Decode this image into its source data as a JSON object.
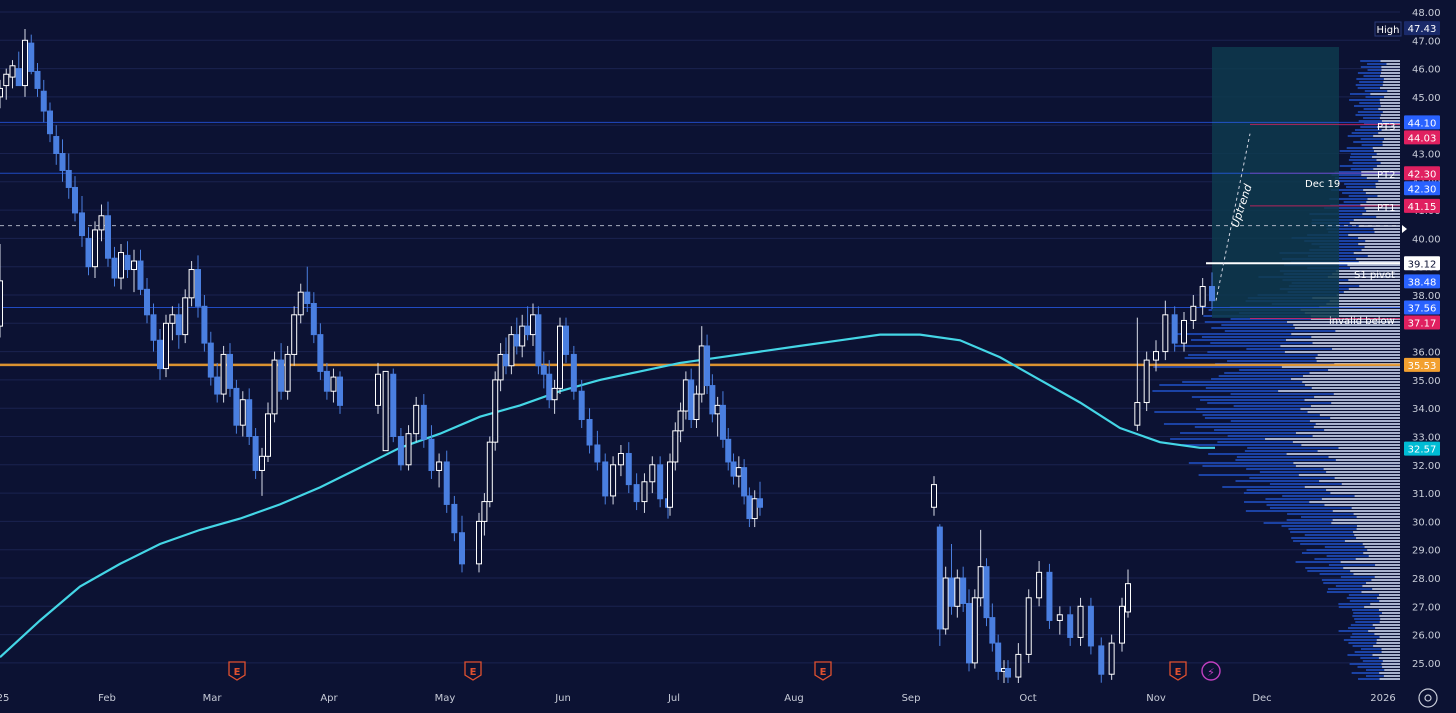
{
  "chart_data": {
    "type": "candlestick",
    "title": "",
    "y_axis": {
      "side": "right",
      "ticks": [
        25,
        26,
        27,
        28,
        29,
        30,
        31,
        32,
        33,
        34,
        35,
        36,
        37,
        38,
        39,
        40,
        41,
        42,
        43,
        44,
        45,
        46,
        47,
        48
      ],
      "tick_labels": [
        "25.00",
        "26.00",
        "27.00",
        "28.00",
        "29.00",
        "30.00",
        "31.00",
        "32.00",
        "33.00",
        "34.00",
        "35.00",
        "36.00",
        "37.00",
        "38.00",
        "39.00",
        "40.00",
        "41.00",
        "42.00",
        "43.00",
        "44.00",
        "45.00",
        "46.00",
        "47.00",
        "48.00"
      ]
    },
    "x_axis": {
      "labels": [
        "25",
        "Feb",
        "Mar",
        "Apr",
        "May",
        "Jun",
        "Jul",
        "Aug",
        "Sep",
        "Oct",
        "Nov",
        "Dec",
        "2026"
      ]
    },
    "candles_ohlc": [
      [
        45.0,
        45.6,
        44.6,
        45.3
      ],
      [
        45.4,
        46.0,
        44.9,
        45.8
      ],
      [
        45.7,
        46.3,
        45.3,
        46.1
      ],
      [
        46.0,
        46.6,
        45.6,
        45.4
      ],
      [
        45.4,
        47.4,
        45.0,
        47.0
      ],
      [
        46.9,
        47.2,
        45.8,
        45.9
      ],
      [
        45.9,
        46.2,
        45.0,
        45.3
      ],
      [
        45.2,
        45.6,
        44.1,
        44.5
      ],
      [
        44.5,
        44.8,
        43.4,
        43.7
      ],
      [
        43.6,
        44.0,
        42.6,
        43.0
      ],
      [
        43.0,
        43.5,
        42.0,
        42.4
      ],
      [
        42.4,
        43.0,
        41.4,
        41.8
      ],
      [
        41.8,
        42.2,
        40.6,
        40.9
      ],
      [
        40.9,
        41.5,
        39.7,
        40.1
      ],
      [
        40.0,
        40.4,
        38.7,
        39.0
      ],
      [
        39.0,
        40.6,
        38.6,
        40.3
      ],
      [
        40.3,
        41.2,
        39.9,
        40.8
      ],
      [
        40.8,
        41.3,
        39.0,
        39.3
      ],
      [
        39.3,
        39.7,
        38.3,
        38.6
      ],
      [
        38.6,
        39.8,
        38.2,
        39.5
      ],
      [
        39.4,
        39.9,
        38.6,
        38.9
      ],
      [
        38.9,
        39.6,
        38.1,
        39.2
      ],
      [
        39.2,
        39.6,
        38.0,
        38.2
      ],
      [
        38.2,
        38.6,
        37.0,
        37.3
      ],
      [
        37.3,
        37.7,
        36.0,
        36.4
      ],
      [
        36.4,
        36.8,
        35.0,
        35.4
      ],
      [
        35.4,
        37.3,
        35.1,
        37.0
      ],
      [
        37.0,
        37.6,
        36.4,
        37.3
      ],
      [
        37.3,
        37.7,
        36.1,
        36.6
      ],
      [
        36.6,
        38.2,
        36.3,
        37.9
      ],
      [
        37.9,
        39.2,
        37.6,
        38.9
      ],
      [
        38.9,
        39.4,
        37.2,
        37.6
      ],
      [
        37.6,
        38.0,
        36.0,
        36.3
      ],
      [
        36.3,
        36.7,
        34.8,
        35.1
      ],
      [
        35.1,
        35.6,
        34.2,
        34.5
      ],
      [
        34.5,
        36.2,
        34.2,
        35.9
      ],
      [
        35.9,
        36.3,
        34.4,
        34.7
      ],
      [
        34.7,
        35.0,
        33.1,
        33.4
      ],
      [
        33.4,
        34.6,
        33.0,
        34.3
      ],
      [
        34.3,
        34.7,
        32.7,
        33.0
      ],
      [
        33.0,
        33.3,
        31.5,
        31.8
      ],
      [
        31.8,
        32.6,
        30.9,
        32.3
      ],
      [
        32.3,
        34.2,
        32.1,
        33.8
      ],
      [
        33.8,
        36.0,
        33.5,
        35.7
      ],
      [
        35.7,
        36.3,
        34.3,
        34.6
      ],
      [
        34.6,
        36.2,
        34.3,
        35.9
      ],
      [
        35.9,
        37.6,
        35.5,
        37.3
      ],
      [
        37.3,
        38.4,
        37.0,
        38.1
      ],
      [
        38.1,
        39.0,
        37.4,
        37.7
      ],
      [
        37.7,
        38.1,
        36.3,
        36.6
      ],
      [
        36.6,
        37.0,
        35.0,
        35.3
      ],
      [
        35.3,
        35.6,
        34.3,
        34.6
      ],
      [
        34.6,
        35.4,
        34.2,
        35.1
      ],
      [
        35.1,
        35.3,
        33.8,
        34.1
      ],
      [
        34.1,
        35.6,
        33.8,
        35.2
      ],
      [
        32.5,
        35.3,
        32.5,
        35.3
      ],
      [
        35.2,
        35.4,
        32.8,
        33.0
      ],
      [
        33.0,
        33.3,
        31.8,
        32.0
      ],
      [
        32.0,
        33.4,
        31.8,
        33.1
      ],
      [
        33.1,
        34.4,
        32.8,
        34.1
      ],
      [
        34.1,
        34.5,
        32.6,
        32.9
      ],
      [
        32.9,
        33.4,
        31.5,
        31.8
      ],
      [
        31.8,
        32.4,
        31.2,
        32.1
      ],
      [
        32.1,
        32.5,
        30.3,
        30.6
      ],
      [
        30.6,
        30.9,
        29.3,
        29.6
      ],
      [
        29.6,
        30.2,
        28.2,
        28.5
      ],
      [
        28.5,
        30.3,
        28.2,
        30.0
      ],
      [
        30.0,
        31.0,
        29.5,
        30.7
      ],
      [
        30.7,
        33.0,
        30.5,
        32.8
      ],
      [
        32.8,
        35.3,
        32.5,
        35.0
      ],
      [
        35.0,
        36.3,
        34.6,
        35.9
      ],
      [
        35.9,
        36.5,
        35.2,
        35.5
      ],
      [
        35.5,
        36.9,
        35.2,
        36.6
      ],
      [
        36.6,
        37.2,
        35.9,
        36.2
      ],
      [
        36.2,
        37.3,
        35.8,
        36.9
      ],
      [
        36.9,
        37.6,
        36.4,
        36.6
      ],
      [
        36.6,
        37.7,
        36.2,
        37.3
      ],
      [
        37.3,
        37.6,
        35.2,
        35.5
      ],
      [
        35.5,
        36.0,
        34.7,
        35.2
      ],
      [
        35.2,
        35.7,
        34.0,
        34.3
      ],
      [
        34.3,
        35.0,
        33.8,
        34.7
      ],
      [
        34.7,
        37.2,
        34.5,
        36.9
      ],
      [
        36.9,
        37.2,
        35.6,
        35.9
      ],
      [
        35.9,
        36.2,
        34.3,
        34.6
      ],
      [
        34.6,
        35.0,
        33.3,
        33.6
      ],
      [
        33.6,
        34.0,
        32.4,
        32.7
      ],
      [
        32.7,
        33.2,
        31.8,
        32.1
      ],
      [
        32.1,
        32.4,
        30.6,
        30.9
      ],
      [
        30.9,
        32.3,
        30.6,
        32.0
      ],
      [
        32.0,
        32.7,
        31.6,
        32.4
      ],
      [
        32.4,
        32.8,
        31.0,
        31.3
      ],
      [
        31.3,
        31.7,
        30.4,
        30.7
      ],
      [
        30.7,
        31.7,
        30.3,
        31.4
      ],
      [
        31.4,
        32.3,
        31.0,
        32.0
      ],
      [
        32.0,
        32.3,
        30.5,
        30.8
      ],
      [
        30.8,
        31.2,
        30.1,
        30.5
      ],
      [
        30.5,
        32.4,
        30.2,
        32.1
      ],
      [
        32.1,
        33.5,
        31.8,
        33.2
      ],
      [
        33.2,
        34.2,
        32.8,
        33.9
      ],
      [
        33.9,
        35.3,
        33.6,
        35.0
      ],
      [
        35.0,
        35.4,
        33.3,
        33.6
      ],
      [
        33.6,
        34.8,
        33.3,
        34.5
      ],
      [
        34.5,
        36.9,
        34.2,
        36.2
      ],
      [
        36.2,
        36.6,
        34.5,
        34.8
      ],
      [
        34.8,
        35.2,
        33.5,
        33.8
      ],
      [
        33.8,
        34.4,
        33.0,
        34.1
      ],
      [
        34.1,
        34.6,
        32.6,
        32.9
      ],
      [
        32.9,
        33.3,
        31.8,
        32.1
      ],
      [
        32.1,
        32.4,
        31.3,
        31.6
      ],
      [
        31.6,
        32.3,
        31.2,
        31.9
      ],
      [
        31.9,
        32.2,
        30.6,
        30.9
      ],
      [
        30.9,
        31.2,
        29.8,
        30.1
      ],
      [
        30.1,
        31.1,
        29.8,
        30.8
      ],
      [
        30.8,
        31.4,
        30.2,
        30.5
      ],
      [
        30.5,
        31.6,
        30.2,
        31.3
      ],
      [
        29.8,
        29.9,
        25.6,
        26.2
      ],
      [
        26.2,
        28.4,
        26.0,
        28.0
      ],
      [
        28.0,
        29.2,
        26.7,
        27.0
      ],
      [
        27.0,
        28.3,
        26.6,
        28.0
      ],
      [
        28.0,
        28.4,
        26.8,
        27.1
      ],
      [
        27.1,
        27.6,
        24.7,
        25.0
      ],
      [
        25.0,
        27.6,
        24.8,
        27.3
      ],
      [
        27.3,
        29.7,
        27.0,
        28.4
      ],
      [
        28.4,
        28.7,
        26.3,
        26.6
      ],
      [
        26.6,
        27.1,
        25.4,
        25.7
      ],
      [
        25.7,
        26.0,
        24.4,
        24.7
      ],
      [
        24.7,
        25.1,
        24.2,
        24.8
      ],
      [
        24.8,
        25.1,
        24.2,
        24.5
      ],
      [
        24.5,
        25.7,
        24.2,
        25.3
      ],
      [
        25.3,
        27.6,
        25.0,
        27.3
      ],
      [
        27.3,
        28.6,
        27.0,
        28.2
      ],
      [
        28.2,
        28.5,
        26.2,
        26.5
      ],
      [
        26.5,
        27.0,
        26.0,
        26.7
      ],
      [
        26.7,
        27.0,
        25.6,
        25.9
      ],
      [
        25.9,
        27.3,
        25.6,
        27.0
      ],
      [
        27.0,
        27.3,
        25.3,
        25.6
      ],
      [
        25.6,
        25.9,
        24.3,
        24.6
      ],
      [
        24.6,
        26.0,
        24.4,
        25.7
      ],
      [
        25.7,
        27.3,
        25.4,
        27.0
      ],
      [
        26.8,
        28.3,
        26.6,
        27.8
      ],
      [
        33.4,
        37.2,
        33.2,
        34.2
      ],
      [
        34.2,
        36.0,
        33.9,
        35.7
      ],
      [
        35.7,
        36.4,
        35.3,
        36.0
      ],
      [
        36.0,
        37.8,
        35.7,
        37.3
      ],
      [
        37.3,
        37.6,
        36.0,
        36.3
      ],
      [
        36.3,
        37.4,
        36.0,
        37.1
      ],
      [
        37.1,
        38.0,
        36.8,
        37.6
      ],
      [
        37.6,
        38.6,
        37.3,
        38.3
      ],
      [
        38.3,
        38.8,
        37.5,
        37.8
      ],
      [
        36.9,
        39.8,
        36.5,
        38.5
      ]
    ],
    "candle_span": {
      "start_date": "2025-01-02",
      "end_date": "2025-11-14"
    },
    "moving_average": {
      "color": "#44d6e6",
      "points": [
        [
          0,
          25.2
        ],
        [
          40,
          26.5
        ],
        [
          80,
          27.7
        ],
        [
          120,
          28.5
        ],
        [
          160,
          29.2
        ],
        [
          200,
          29.7
        ],
        [
          240,
          30.1
        ],
        [
          280,
          30.6
        ],
        [
          320,
          31.2
        ],
        [
          360,
          31.9
        ],
        [
          400,
          32.6
        ],
        [
          440,
          33.1
        ],
        [
          480,
          33.7
        ],
        [
          520,
          34.1
        ],
        [
          560,
          34.6
        ],
        [
          600,
          35.0
        ],
        [
          640,
          35.3
        ],
        [
          680,
          35.6
        ],
        [
          720,
          35.8
        ],
        [
          760,
          36.0
        ],
        [
          800,
          36.2
        ],
        [
          840,
          36.4
        ],
        [
          880,
          36.6
        ],
        [
          920,
          36.6
        ],
        [
          960,
          36.4
        ],
        [
          1000,
          35.8
        ],
        [
          1040,
          35.0
        ],
        [
          1080,
          34.2
        ],
        [
          1120,
          33.3
        ],
        [
          1160,
          32.8
        ],
        [
          1200,
          32.6
        ],
        [
          1215,
          32.6
        ]
      ]
    },
    "horizontal_levels": [
      {
        "name": "PT3",
        "value": 44.03,
        "color": "#e02060",
        "label_value": "44.03"
      },
      {
        "name": "PT2",
        "value": 42.3,
        "color": "#e02060",
        "label_value": "42.30"
      },
      {
        "name": "PT1",
        "value": 41.15,
        "color": "#e02060",
        "label_value": "41.15"
      },
      {
        "name": "S1 pivot",
        "value": 39.12,
        "color": "#ffffff",
        "label_value": "39.12"
      },
      {
        "name": "invalid below",
        "value": 37.17,
        "color": "#e02060",
        "label_value": "37.17"
      },
      {
        "name": "",
        "value": 35.53,
        "color": "#f2a030",
        "label_value": "35.53"
      },
      {
        "name": "",
        "value": 44.1,
        "color": "#2962ff",
        "label_value": "44.10"
      },
      {
        "name": "",
        "value": 42.3,
        "color": "#2962ff",
        "label_value": "42.30"
      },
      {
        "name": "",
        "value": 37.56,
        "color": "#2962ff",
        "label_value": "37.56"
      }
    ],
    "price_tags": [
      {
        "text": "47.43",
        "value": 47.43,
        "color": "#1a2a6a"
      },
      {
        "text": "44.10",
        "value": 44.1,
        "color": "#2962ff"
      },
      {
        "text": "44.03",
        "value": 44.03,
        "color": "#e02060"
      },
      {
        "text": "42.30",
        "value": 42.3,
        "color": "#e02060"
      },
      {
        "text": "42.30",
        "value": 42.3,
        "color": "#2962ff"
      },
      {
        "text": "41.15",
        "value": 41.15,
        "color": "#e02060"
      },
      {
        "text": "39.12",
        "value": 39.12,
        "color": "#ffffff"
      },
      {
        "text": "38.48",
        "value": 38.48,
        "color": "#2962ff"
      },
      {
        "text": "37.56",
        "value": 37.56,
        "color": "#2962ff"
      },
      {
        "text": "37.17",
        "value": 37.17,
        "color": "#e02060"
      },
      {
        "text": "35.53",
        "value": 35.53,
        "color": "#f2a030"
      },
      {
        "text": "32.57",
        "value": 32.57,
        "color": "#00bcd4"
      }
    ],
    "high_label": "High",
    "dotted_level": 40.45,
    "annotations": {
      "dec19": "Dec 19",
      "uptrend": "Uptrend"
    },
    "earnings_markers": [
      "E",
      "E",
      "E",
      "E"
    ],
    "volume_profile": true,
    "colors": {
      "background": "#0c1233",
      "up_candle": "#ffffff",
      "down_candle": "#4a7fe0",
      "grid": "#1a2250",
      "projection_box": "#0e3a4e",
      "moving_average": "#44d6e6",
      "earnings": "#e05030"
    }
  }
}
